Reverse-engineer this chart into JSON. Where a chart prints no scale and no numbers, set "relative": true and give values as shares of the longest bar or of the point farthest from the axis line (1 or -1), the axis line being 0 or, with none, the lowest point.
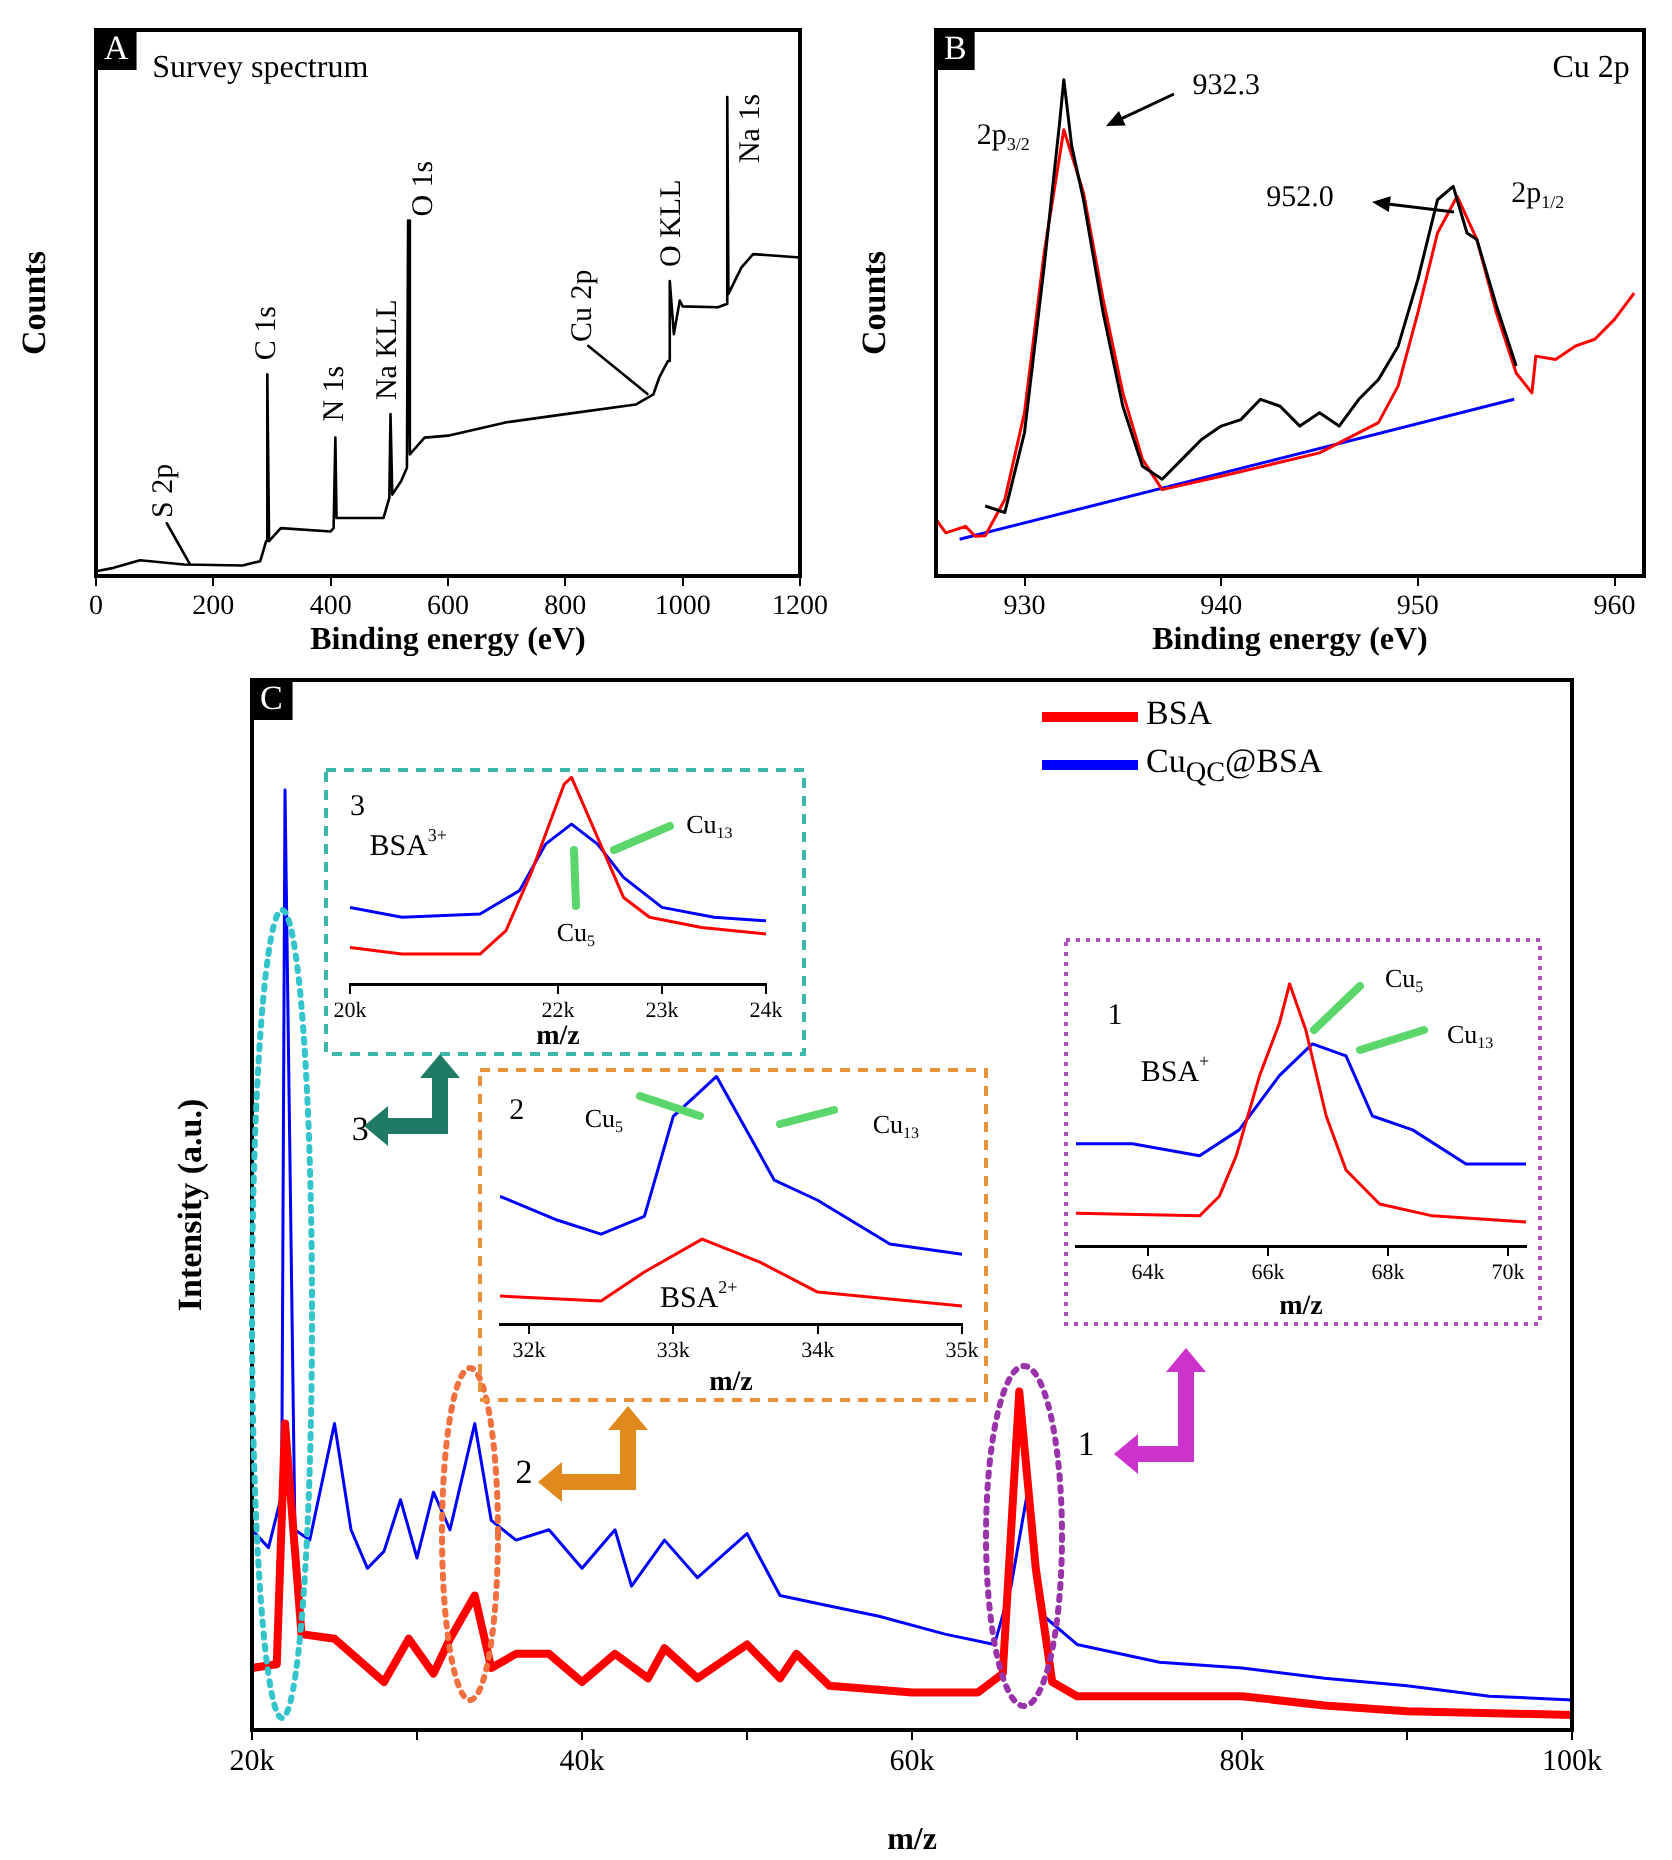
{
  "chart_data": [
    {
      "type": "line",
      "relative": true,
      "xlim": [
        0,
        1200
      ],
      "xticks": [
        0,
        200,
        400,
        600,
        800,
        1000,
        1200
      ],
      "xlabel": "Binding energy (eV)",
      "ylabel": "Counts",
      "x": [
        0,
        30,
        75,
        150,
        250,
        280,
        290,
        292,
        295,
        315,
        400,
        405,
        408,
        410,
        490,
        500,
        502,
        505,
        520,
        530,
        532,
        535,
        560,
        600,
        700,
        800,
        920,
        950,
        960,
        975,
        978,
        985,
        995,
        1000,
        1060,
        1075,
        1076,
        1078,
        1100,
        1120,
        1200
      ],
      "series": [
        {
          "color": "#000000",
          "values": [
            0.01,
            0.017,
            0.033,
            0.024,
            0.022,
            0.031,
            0.073,
            0.421,
            0.073,
            0.1,
            0.093,
            0.1,
            0.289,
            0.121,
            0.121,
            0.163,
            0.338,
            0.17,
            0.198,
            0.226,
            0.742,
            0.254,
            0.289,
            0.293,
            0.321,
            0.338,
            0.358,
            0.379,
            0.414,
            0.449,
            0.616,
            0.505,
            0.575,
            0.563,
            0.561,
            0.568,
            1,
            0.589,
            0.644,
            0.672,
            0.665
          ]
        }
      ],
      "annotations": [
        "A",
        "Survey spectrum",
        {
          "text": "S 2p",
          "x": 160,
          "y": 0.025
        },
        {
          "text": "C 1s",
          "x": 292,
          "y": 0.421
        },
        {
          "text": "N 1s",
          "x": 408,
          "y": 0.289
        },
        {
          "text": "Na KLL",
          "x": 502,
          "y": 0.338
        },
        {
          "text": "O 1s",
          "x": 532,
          "y": 0.742
        },
        {
          "text": "Cu 2p",
          "x": 940,
          "y": 0.38
        },
        {
          "text": "O KLL",
          "x": 978,
          "y": 0.616
        },
        {
          "text": "Na 1s",
          "x": 1076,
          "y": 1
        }
      ]
    },
    {
      "type": "line",
      "relative": true,
      "xlim": [
        925.5,
        961.5
      ],
      "xticks": [
        930,
        940,
        950,
        960
      ],
      "xlabel": "Binding energy (eV)",
      "ylabel": "Counts",
      "series": [
        {
          "color": "#000000",
          "x": [
            928,
            929,
            930,
            931,
            931.8,
            932,
            932.4,
            933,
            934,
            935,
            936,
            937,
            938,
            939,
            940,
            941,
            942,
            943,
            944,
            945,
            946,
            947,
            948,
            949,
            950,
            951,
            951.8,
            952.5,
            953,
            954,
            955
          ],
          "values": [
            0.141,
            0.128,
            0.289,
            0.624,
            0.919,
            1,
            0.866,
            0.758,
            0.53,
            0.342,
            0.221,
            0.195,
            0.235,
            0.275,
            0.302,
            0.315,
            0.356,
            0.342,
            0.302,
            0.329,
            0.302,
            0.356,
            0.396,
            0.463,
            0.597,
            0.758,
            0.785,
            0.691,
            0.678,
            0.544,
            0.423
          ]
        },
        {
          "color": "#ff0000",
          "x": [
            925.5,
            926,
            927,
            927.5,
            928,
            929,
            930,
            931,
            932,
            933,
            934,
            935,
            936,
            937,
            940,
            945,
            948,
            949,
            950,
            951,
            952,
            953,
            954,
            955,
            955.8,
            956,
            957,
            958,
            959,
            960,
            961
          ],
          "values": [
            0.114,
            0.087,
            0.1,
            0.08,
            0.081,
            0.154,
            0.329,
            0.651,
            0.899,
            0.772,
            0.557,
            0.369,
            0.235,
            0.174,
            0.201,
            0.248,
            0.309,
            0.383,
            0.53,
            0.691,
            0.765,
            0.678,
            0.53,
            0.409,
            0.369,
            0.443,
            0.436,
            0.463,
            0.477,
            0.517,
            0.57
          ]
        },
        {
          "color": "#0000ff",
          "x": [
            926.7,
            954.9
          ],
          "values": [
            0.074,
            0.356
          ]
        }
      ],
      "annotations": [
        "B",
        "Cu 2p",
        "932.3",
        "952.0",
        "2p$_{3/2}$",
        "2p$_{1/2}$"
      ]
    },
    {
      "type": "line",
      "relative": true,
      "xlim": [
        20000,
        100000
      ],
      "xticks": [
        {
          "value": 20000,
          "label": "20k"
        },
        {
          "value": 30000,
          "label": null
        },
        {
          "value": 40000,
          "label": "40k"
        },
        {
          "value": 50000,
          "label": null
        },
        {
          "value": 60000,
          "label": "60k"
        },
        {
          "value": 70000,
          "label": null
        },
        {
          "value": 80000,
          "label": "80k"
        },
        {
          "value": 90000,
          "label": null
        },
        {
          "value": 100000,
          "label": "100k"
        }
      ],
      "xlabel": "m/z",
      "ylabel": "Intensity (a.u.)",
      "legend": "top right",
      "series": [
        {
          "name": "BSA",
          "color": "#ff0000",
          "x": [
            20000,
            21500,
            22000,
            23000,
            25000,
            28000,
            29500,
            31000,
            32000,
            33500,
            34500,
            36000,
            38000,
            40000,
            42000,
            44000,
            45000,
            47000,
            50000,
            52000,
            53000,
            55000,
            60000,
            64000,
            65500,
            66500,
            67500,
            68500,
            70000,
            80000,
            85000,
            90000,
            100000
          ],
          "values": [
            0.066,
            0.07,
            0.326,
            0.102,
            0.097,
            0.051,
            0.097,
            0.06,
            0.097,
            0.143,
            0.066,
            0.081,
            0.081,
            0.051,
            0.081,
            0.055,
            0.087,
            0.055,
            0.091,
            0.055,
            0.081,
            0.047,
            0.04,
            0.04,
            0.06,
            0.36,
            0.172,
            0.051,
            0.036,
            0.036,
            0.026,
            0.02,
            0.016
          ]
        },
        {
          "name": "Cu$_{QC}$@BSA",
          "color": "#0000ff",
          "x": [
            20000,
            21000,
            21800,
            22000,
            22600,
            23500,
            25000,
            26000,
            27000,
            28000,
            29000,
            30000,
            31000,
            32000,
            33500,
            34500,
            36000,
            38000,
            40000,
            42000,
            43000,
            45000,
            47000,
            50000,
            52000,
            55000,
            58000,
            62000,
            65000,
            66000,
            67000,
            68000,
            70000,
            75000,
            80000,
            85000,
            90000,
            95000,
            100000
          ],
          "values": [
            0.213,
            0.194,
            0.25,
            1,
            0.213,
            0.202,
            0.326,
            0.213,
            0.172,
            0.19,
            0.245,
            0.183,
            0.253,
            0.213,
            0.326,
            0.223,
            0.202,
            0.213,
            0.172,
            0.213,
            0.153,
            0.202,
            0.162,
            0.209,
            0.143,
            0.132,
            0.121,
            0.102,
            0.091,
            0.153,
            0.253,
            0.121,
            0.091,
            0.072,
            0.066,
            0.055,
            0.047,
            0.036,
            0.032
          ]
        }
      ],
      "annotations": [
        "C",
        "3",
        "2",
        "1"
      ]
    },
    {
      "type": "line",
      "relative": true,
      "xlim": [
        20000,
        24000
      ],
      "xticks": [
        {
          "value": 20000,
          "label": "20k"
        },
        {
          "value": 22000,
          "label": "22k"
        },
        {
          "value": 23000,
          "label": "23k"
        },
        {
          "value": 24000,
          "label": "24k"
        }
      ],
      "xlabel": "m/z",
      "series": [
        {
          "color": "#ff0000",
          "x": [
            20000,
            20500,
            21250,
            21500,
            21750,
            22060,
            22130,
            22380,
            22630,
            22880,
            23380,
            24000
          ],
          "values": [
            0.177,
            0.145,
            0.145,
            0.258,
            0.548,
            0.968,
            1,
            0.71,
            0.419,
            0.323,
            0.274,
            0.242
          ]
        },
        {
          "color": "#0000ff",
          "x": [
            20000,
            20500,
            21250,
            21630,
            21880,
            22130,
            22380,
            22630,
            23000,
            23500,
            24000
          ],
          "values": [
            0.371,
            0.323,
            0.339,
            0.452,
            0.677,
            0.774,
            0.677,
            0.516,
            0.371,
            0.323,
            0.306
          ]
        }
      ],
      "annotations": [
        "3",
        "BSA$^{3+}$",
        "Cu$_{13}$",
        "Cu$_{5}$"
      ]
    },
    {
      "type": "line",
      "relative": true,
      "xlim": [
        31800,
        35000
      ],
      "xticks": [
        {
          "value": 32000,
          "label": "32k"
        },
        {
          "value": 33000,
          "label": "33k"
        },
        {
          "value": 34000,
          "label": "34k"
        },
        {
          "value": 35000,
          "label": "35k"
        }
      ],
      "xlabel": "m/z",
      "series": [
        {
          "color": "#0000ff",
          "x": [
            31800,
            32200,
            32500,
            32800,
            33000,
            33300,
            33700,
            34000,
            34500,
            35000
          ],
          "values": [
            0.516,
            0.419,
            0.363,
            0.435,
            0.839,
            1,
            0.581,
            0.5,
            0.323,
            0.282
          ]
        },
        {
          "color": "#ff0000",
          "x": [
            31800,
            32500,
            32800,
            33200,
            33600,
            34000,
            35000
          ],
          "values": [
            0.113,
            0.093,
            0.21,
            0.343,
            0.25,
            0.129,
            0.073
          ]
        }
      ],
      "annotations": [
        "2",
        "Cu$_{5}$",
        "Cu$_{13}$",
        "BSA$^{2+}$"
      ]
    },
    {
      "type": "line",
      "relative": true,
      "xlim": [
        62800,
        70300
      ],
      "xticks": [
        {
          "value": 64000,
          "label": "64k"
        },
        {
          "value": 66000,
          "label": "66k"
        },
        {
          "value": 68000,
          "label": "68k"
        },
        {
          "value": 70000,
          "label": "70k"
        }
      ],
      "xlabel": "m/z",
      "series": [
        {
          "color": "#ff0000",
          "x": [
            62800,
            64860,
            65190,
            65470,
            65860,
            66190,
            66360,
            66630,
            66970,
            67300,
            67860,
            68740,
            70300
          ],
          "values": [
            0.125,
            0.115,
            0.19,
            0.344,
            0.65,
            0.85,
            1,
            0.824,
            0.496,
            0.29,
            0.16,
            0.115,
            0.092
          ]
        },
        {
          "color": "#0000ff",
          "x": [
            62800,
            63740,
            64860,
            65520,
            66190,
            66740,
            67300,
            67740,
            68410,
            69300,
            70300
          ],
          "values": [
            0.39,
            0.39,
            0.344,
            0.443,
            0.65,
            0.771,
            0.725,
            0.496,
            0.443,
            0.313,
            0.313
          ]
        }
      ],
      "annotations": [
        "1",
        "BSA$^{+}$",
        "Cu$_{5}$",
        "Cu$_{13}$"
      ]
    }
  ]
}
